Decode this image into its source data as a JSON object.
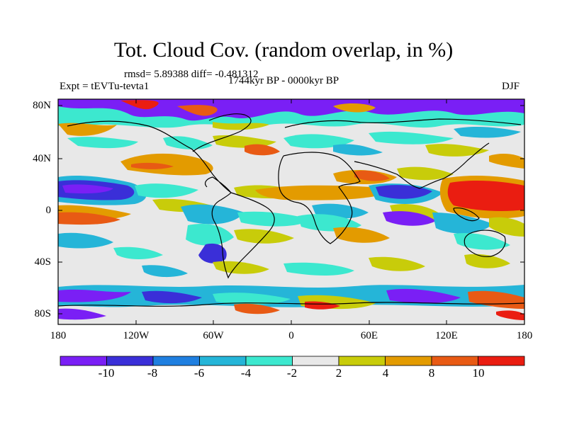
{
  "title": "Tot. Cloud Cov. (random overlap, in %)",
  "stats": "rmsd= 5.89388 diff= -0.481312",
  "experiment": "Expt = tEVTu-tevta1",
  "period": "1744kyr BP - 0000kyr BP",
  "season": "DJF",
  "lat_ticks": [
    "80N",
    "40N",
    "0",
    "40S",
    "80S"
  ],
  "lon_ticks": [
    "180",
    "120W",
    "60W",
    "0",
    "60E",
    "120E",
    "180"
  ],
  "colorbar": {
    "levels": [
      "-10",
      "-8",
      "-6",
      "-4",
      "-2",
      "2",
      "4",
      "8",
      "10"
    ],
    "colors": [
      "#7a1ff5",
      "#3a2fd8",
      "#1f7fe0",
      "#25b5d8",
      "#3ce8cf",
      "#e8e8e8",
      "#c8cc0a",
      "#e39b00",
      "#e85a14",
      "#ea1d11"
    ]
  }
}
